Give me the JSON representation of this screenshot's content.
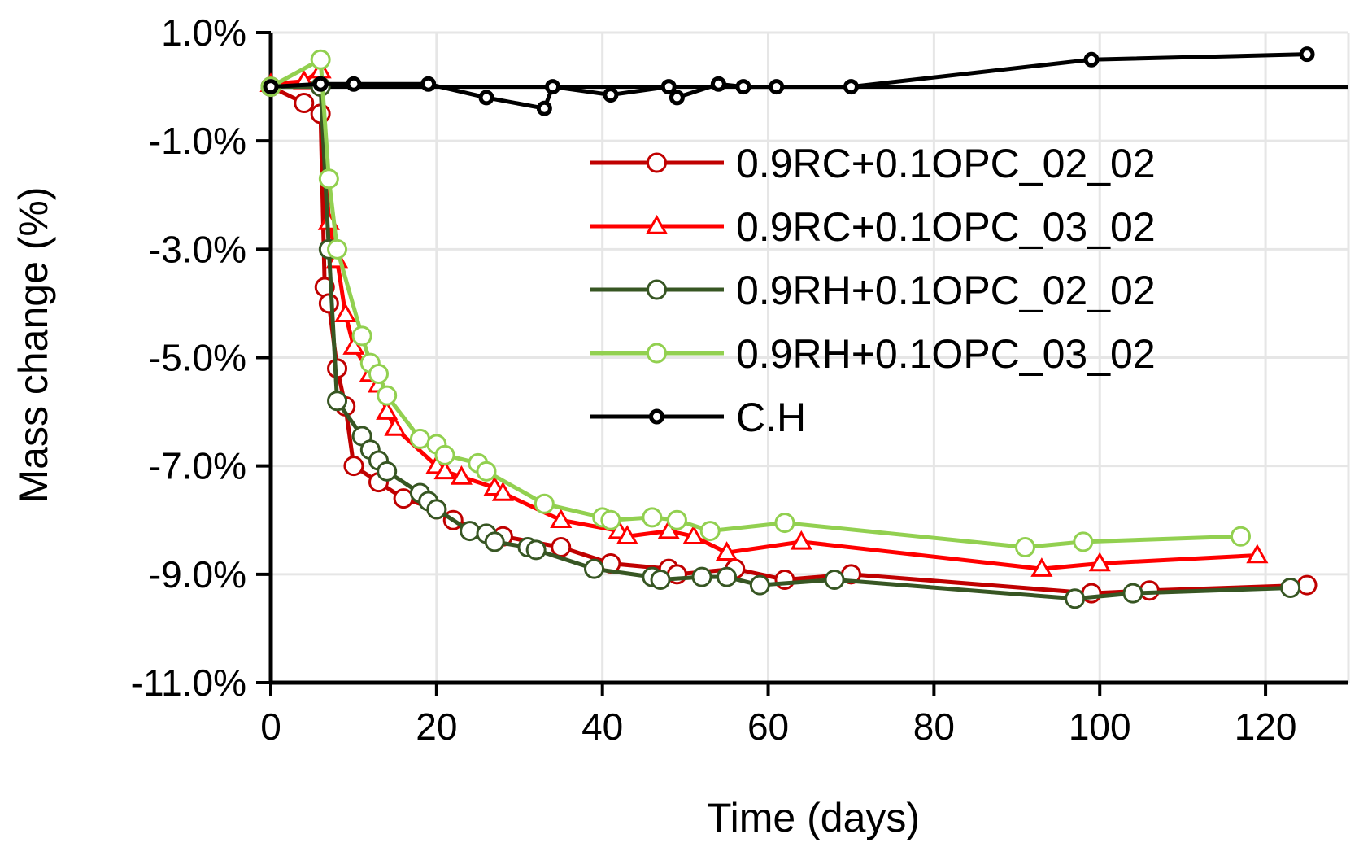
{
  "chart_data": {
    "type": "line",
    "title": "",
    "xlabel": "Time (days)",
    "ylabel": "Mass change (%)",
    "xlim": [
      0,
      130
    ],
    "ylim": [
      -11,
      1
    ],
    "xticks": [
      0,
      20,
      40,
      60,
      80,
      100,
      120
    ],
    "xtick_labels": [
      "0",
      "20",
      "40",
      "60",
      "80",
      "100",
      "120"
    ],
    "yticks": [
      1,
      -1,
      -3,
      -5,
      -7,
      -9,
      -11
    ],
    "ytick_labels": [
      "1.0%",
      "-1.0%",
      "-3.0%",
      "-5.0%",
      "-7.0%",
      "-9.0%",
      "-11.0%"
    ],
    "grid": true,
    "legend_position": "top-right",
    "series": [
      {
        "name": "0.9RC+0.1OPC_02_02",
        "color": "#c00000",
        "marker": "circle",
        "x": [
          0,
          4,
          6,
          6.5,
          7,
          8,
          9,
          10,
          13,
          16,
          20,
          22,
          28,
          35,
          41,
          48,
          49,
          56,
          62,
          70,
          99,
          106,
          125
        ],
        "y": [
          0,
          -0.3,
          -0.5,
          -3.7,
          -4.0,
          -5.2,
          -5.9,
          -7.0,
          -7.3,
          -7.6,
          -7.8,
          -8.0,
          -8.3,
          -8.5,
          -8.8,
          -8.9,
          -9.0,
          -8.9,
          -9.1,
          -9.0,
          -9.35,
          -9.3,
          -9.2
        ]
      },
      {
        "name": "0.9RC+0.1OPC_03_02",
        "color": "#ff0000",
        "marker": "triangle",
        "x": [
          0,
          4,
          6,
          7,
          8,
          9,
          10,
          12,
          13,
          14,
          15,
          20,
          21,
          23,
          27,
          28,
          35,
          42,
          43,
          48,
          51,
          55,
          64,
          93,
          100,
          119
        ],
        "y": [
          0.05,
          0.1,
          0.3,
          -2.5,
          -3.2,
          -4.2,
          -4.8,
          -5.3,
          -5.5,
          -6.0,
          -6.3,
          -7.0,
          -7.1,
          -7.2,
          -7.4,
          -7.5,
          -8.0,
          -8.2,
          -8.3,
          -8.2,
          -8.3,
          -8.6,
          -8.4,
          -8.9,
          -8.8,
          -8.65
        ]
      },
      {
        "name": "0.9RH+0.1OPC_02_02",
        "color": "#375623",
        "marker": "circle",
        "x": [
          0,
          6,
          7,
          8,
          11,
          12,
          13,
          14,
          18,
          19,
          20,
          24,
          26,
          27,
          31,
          32,
          39,
          46,
          47,
          52,
          55,
          59,
          68,
          97,
          104,
          123
        ],
        "y": [
          0,
          0,
          -3.0,
          -5.8,
          -6.45,
          -6.7,
          -6.9,
          -7.1,
          -7.5,
          -7.65,
          -7.8,
          -8.2,
          -8.25,
          -8.4,
          -8.5,
          -8.55,
          -8.9,
          -9.05,
          -9.1,
          -9.05,
          -9.05,
          -9.2,
          -9.1,
          -9.45,
          -9.35,
          -9.25
        ]
      },
      {
        "name": "0.9RH+0.1OPC_03_02",
        "color": "#92d050",
        "marker": "circle",
        "x": [
          0,
          6,
          7,
          8,
          11,
          12,
          13,
          14,
          18,
          20,
          21,
          25,
          26,
          33,
          40,
          41,
          46,
          49,
          53,
          62,
          91,
          98,
          117
        ],
        "y": [
          0,
          0.5,
          -1.7,
          -3.0,
          -4.6,
          -5.1,
          -5.3,
          -5.7,
          -6.5,
          -6.6,
          -6.8,
          -6.95,
          -7.1,
          -7.7,
          -7.95,
          -8.0,
          -7.95,
          -8.0,
          -8.2,
          -8.05,
          -8.5,
          -8.4,
          -8.3
        ]
      },
      {
        "name": "C.H",
        "color": "#000000",
        "marker": "circle-small",
        "x": [
          0,
          6,
          10,
          19,
          26,
          33,
          34,
          41,
          48,
          49,
          54,
          57,
          61,
          70,
          99,
          125
        ],
        "y": [
          0,
          0.05,
          0.05,
          0.05,
          -0.2,
          -0.4,
          0,
          -0.15,
          0,
          -0.2,
          0.05,
          0,
          0,
          0,
          0.5,
          0.6
        ]
      }
    ]
  }
}
